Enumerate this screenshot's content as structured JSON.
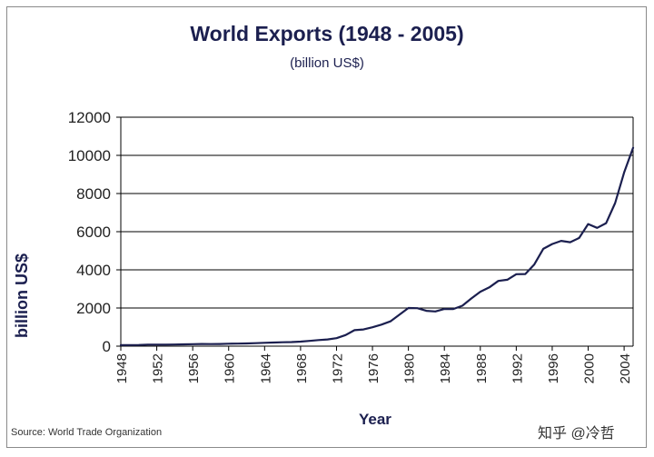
{
  "chart_data": {
    "type": "line",
    "title": "World Exports (1948 - 2005)",
    "subtitle": "(billion US$)",
    "xlabel": "Year",
    "ylabel": "billion US$",
    "source": "Source: World Trade Organization",
    "watermark": "知乎 @冷哲",
    "xlim": [
      1948,
      2005
    ],
    "ylim": [
      0,
      12000
    ],
    "yticks": [
      0,
      2000,
      4000,
      6000,
      8000,
      10000,
      12000
    ],
    "xticks": [
      1948,
      1952,
      1956,
      1960,
      1964,
      1968,
      1972,
      1976,
      1980,
      1984,
      1988,
      1992,
      1996,
      2000,
      2004
    ],
    "grid": true,
    "series": [
      {
        "name": "World Exports",
        "color": "#1b1f4f",
        "x": [
          1948,
          1949,
          1950,
          1951,
          1952,
          1953,
          1954,
          1955,
          1956,
          1957,
          1958,
          1959,
          1960,
          1961,
          1962,
          1963,
          1964,
          1965,
          1966,
          1967,
          1968,
          1969,
          1970,
          1971,
          1972,
          1973,
          1974,
          1975,
          1976,
          1977,
          1978,
          1979,
          1980,
          1981,
          1982,
          1983,
          1984,
          1985,
          1986,
          1987,
          1988,
          1989,
          1990,
          1991,
          1992,
          1993,
          1994,
          1995,
          1996,
          1997,
          1998,
          1999,
          2000,
          2001,
          2002,
          2003,
          2004,
          2005
        ],
        "values": [
          59,
          59,
          62,
          82,
          80,
          83,
          86,
          94,
          104,
          113,
          109,
          116,
          130,
          134,
          141,
          155,
          175,
          190,
          206,
          216,
          240,
          275,
          317,
          353,
          417,
          580,
          840,
          877,
          992,
          1130,
          1300,
          1650,
          2000,
          1990,
          1850,
          1820,
          1950,
          1950,
          2120,
          2500,
          2850,
          3080,
          3420,
          3480,
          3770,
          3780,
          4280,
          5100,
          5350,
          5520,
          5450,
          5670,
          6400,
          6200,
          6450,
          7500,
          9100,
          10400
        ]
      }
    ]
  }
}
